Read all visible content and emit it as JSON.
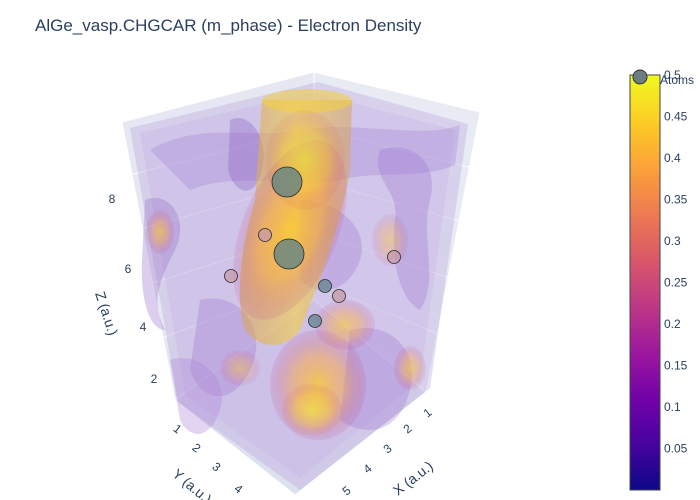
{
  "chart_data": {
    "type": "isosurface-3d",
    "title": "AlGe_vasp.CHGCAR (m_phase) - Electron Density",
    "axes": {
      "x": {
        "label": "X (a.u.)",
        "ticks": [
          "1",
          "2",
          "3",
          "4",
          "5"
        ]
      },
      "y": {
        "label": "Y (a.u.)",
        "ticks": [
          "1",
          "2",
          "3",
          "4"
        ]
      },
      "z": {
        "label": "Z (a.u.)",
        "ticks": [
          "2",
          "4",
          "6",
          "8"
        ]
      }
    },
    "colorbar": {
      "range": [
        0,
        0.5
      ],
      "ticks": [
        "0.05",
        "0.1",
        "0.15",
        "0.2",
        "0.25",
        "0.3",
        "0.35",
        "0.4",
        "0.45",
        "0.5"
      ],
      "colorscale": [
        "#0d0887",
        "#46039f",
        "#7201a8",
        "#9c179e",
        "#bd3786",
        "#d8576b",
        "#ed7953",
        "#fb9f3a",
        "#fdca26",
        "#f0f921"
      ]
    },
    "legend": {
      "entries": [
        {
          "name": "Atoms",
          "marker_color": "#6b7d80"
        }
      ]
    },
    "atoms": [
      {
        "kind": "large",
        "color": "#6b8780"
      },
      {
        "kind": "large",
        "color": "#6b8780"
      },
      {
        "kind": "small",
        "color": "#c79aa8"
      },
      {
        "kind": "small",
        "color": "#c79aa8"
      },
      {
        "kind": "small",
        "color": "#c79aa8"
      },
      {
        "kind": "small",
        "color": "#c79aa8"
      },
      {
        "kind": "medium",
        "color": "#6f8a98"
      },
      {
        "kind": "medium",
        "color": "#6f8a98"
      }
    ]
  }
}
